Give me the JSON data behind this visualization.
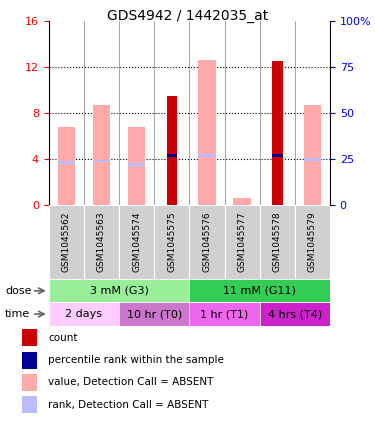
{
  "title": "GDS4942 / 1442035_at",
  "samples": [
    "GSM1045562",
    "GSM1045563",
    "GSM1045574",
    "GSM1045575",
    "GSM1045576",
    "GSM1045577",
    "GSM1045578",
    "GSM1045579"
  ],
  "count_values": [
    0,
    0,
    0,
    9.5,
    0,
    0,
    12.5,
    0
  ],
  "rank_values_pct": [
    23,
    24,
    22,
    27,
    27,
    0,
    27,
    25
  ],
  "absent_value_bars": [
    6.8,
    8.7,
    6.8,
    0,
    12.6,
    0.6,
    0,
    8.7
  ],
  "absent_rank_pct": [
    23,
    24,
    22,
    0,
    27,
    0,
    0,
    25
  ],
  "left_ylim": [
    0,
    16
  ],
  "right_ylim": [
    0,
    100
  ],
  "left_yticks": [
    0,
    4,
    8,
    12,
    16
  ],
  "right_yticks": [
    0,
    25,
    50,
    75,
    100
  ],
  "left_yticklabels": [
    "0",
    "4",
    "8",
    "12",
    "16"
  ],
  "right_yticklabels": [
    "0",
    "25",
    "50",
    "75",
    "100%"
  ],
  "dose_groups": [
    {
      "label": "3 mM (G3)",
      "start": 0,
      "end": 4,
      "color": "#99ee99"
    },
    {
      "label": "11 mM (G11)",
      "start": 4,
      "end": 8,
      "color": "#33cc55"
    }
  ],
  "time_colors": [
    "#ffccff",
    "#cc77cc",
    "#ee66ee",
    "#cc22cc"
  ],
  "time_groups": [
    {
      "label": "2 days",
      "start": 0,
      "end": 2
    },
    {
      "label": "10 hr (T0)",
      "start": 2,
      "end": 4
    },
    {
      "label": "1 hr (T1)",
      "start": 4,
      "end": 6
    },
    {
      "label": "4 hrs (T4)",
      "start": 6,
      "end": 8
    }
  ],
  "count_color": "#cc0000",
  "rank_color": "#000099",
  "absent_value_color": "#ffaaaa",
  "absent_rank_color": "#bbbbff",
  "legend_items": [
    {
      "color": "#cc0000",
      "label": "count"
    },
    {
      "color": "#000099",
      "label": "percentile rank within the sample"
    },
    {
      "color": "#ffaaaa",
      "label": "value, Detection Call = ABSENT"
    },
    {
      "color": "#bbbbff",
      "label": "rank, Detection Call = ABSENT"
    }
  ]
}
